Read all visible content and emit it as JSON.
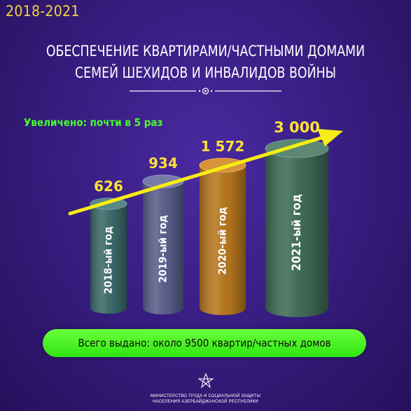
{
  "header": {
    "period": "2018-2021",
    "title_line1": "ОБЕСПЕЧЕНИЕ КВАРТИРАМИ/ЧАСТНЫМИ ДОМАМИ",
    "title_line2": "СЕМЕЙ ШЕХИДОВ И ИНВАЛИДОВ ВОЙНЫ"
  },
  "annotation": "Увеличено: почти в 5 раз",
  "chart_data": {
    "type": "bar",
    "categories": [
      "2018-ый год",
      "2019-ый год",
      "2020-ый год",
      "2021-ый год"
    ],
    "values": [
      626,
      934,
      1572,
      3000
    ],
    "value_labels": [
      "626",
      "934",
      "1 572",
      "3 000"
    ],
    "title": "",
    "xlabel": "",
    "ylabel": "",
    "grid": false,
    "legend": "none"
  },
  "colors": {
    "bar_2018": "#3c6b6a",
    "bar_2019": "#5a5f8c",
    "bar_2020": "#b9781e",
    "bar_2021": "#3f6b57",
    "arrow": "#f7ec13",
    "value_label": "#ffe03a",
    "total_pill": "#45f020"
  },
  "footer": {
    "total": "Всего выдано: около 9500 квартир/частных домов",
    "ministry_line1": "МИНИСТЕРСТВО ТРУДА И СОЦИАЛЬНОЙ ЗАЩИТЫ",
    "ministry_line2": "НАСЕЛЕНИЯ АЗЕРБАЙДЖАНСКОЙ РЕСПУБЛИКИ",
    "logo_icon": "ministry-emblem-icon"
  }
}
